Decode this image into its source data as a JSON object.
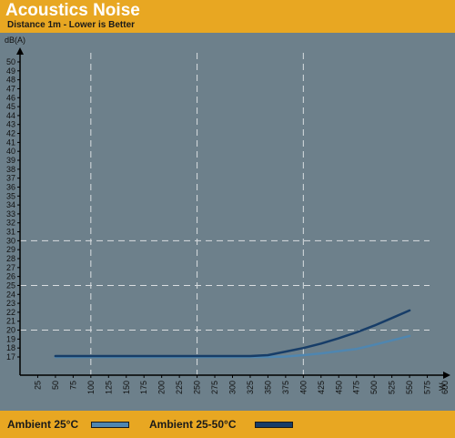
{
  "header": {
    "title": "Acoustics Noise",
    "subtitle": "Distance 1m - Lower is Better"
  },
  "legend": {
    "items": [
      {
        "label": "Ambient 25°C",
        "color": "#4f86b0"
      },
      {
        "label": "Ambient 25-50°C",
        "color": "#173d68"
      }
    ]
  },
  "chart_data": {
    "type": "line",
    "title": "Acoustics Noise",
    "subtitle": "Distance 1m - Lower is Better",
    "xlabel": "W",
    "ylabel": "dB(A)",
    "xlim": [
      0,
      600
    ],
    "ylim": [
      16,
      51
    ],
    "x_ticks": [
      25,
      50,
      75,
      100,
      125,
      150,
      175,
      200,
      225,
      250,
      275,
      300,
      325,
      350,
      375,
      400,
      425,
      450,
      475,
      500,
      525,
      550,
      575,
      600
    ],
    "y_ticks": [
      17,
      18,
      19,
      20,
      21,
      22,
      23,
      24,
      25,
      26,
      27,
      28,
      29,
      30,
      31,
      32,
      33,
      34,
      35,
      36,
      37,
      38,
      39,
      40,
      41,
      42,
      43,
      44,
      45,
      46,
      47,
      48,
      49,
      50
    ],
    "v_gridlines": [
      100,
      250,
      400
    ],
    "h_gridlines": [
      20,
      25,
      30
    ],
    "grid": true,
    "legend_position": "bottom",
    "series": [
      {
        "name": "Ambient 25°C",
        "color": "#4f86b0",
        "x": [
          50,
          100,
          150,
          200,
          250,
          300,
          350,
          375,
          400,
          425,
          450,
          475,
          500,
          525,
          550
        ],
        "y": [
          17.0,
          17.0,
          17.0,
          17.0,
          17.0,
          17.0,
          17.0,
          17.05,
          17.2,
          17.4,
          17.65,
          17.9,
          18.35,
          18.85,
          19.35
        ]
      },
      {
        "name": "Ambient 25-50°C",
        "color": "#173d68",
        "x": [
          50,
          100,
          150,
          200,
          250,
          300,
          325,
          350,
          375,
          400,
          425,
          450,
          475,
          500,
          525,
          550
        ],
        "y": [
          17.1,
          17.1,
          17.1,
          17.1,
          17.1,
          17.1,
          17.1,
          17.2,
          17.6,
          18.0,
          18.5,
          19.1,
          19.75,
          20.5,
          21.35,
          22.2
        ]
      }
    ]
  }
}
